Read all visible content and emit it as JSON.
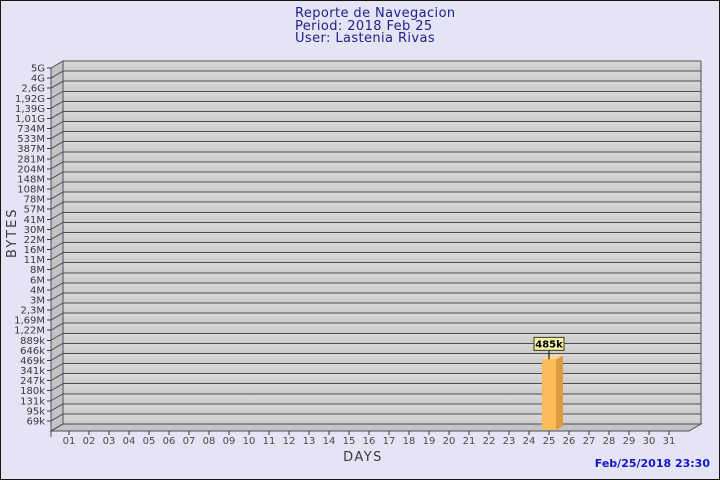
{
  "page": {
    "background_color": "#E4E4F5",
    "footer_timestamp": "Feb/25/2018 23:30"
  },
  "chart_data": {
    "type": "bar",
    "title": "Reporte de Navegacion",
    "period_line": "Period: 2018 Feb 25",
    "user_line": "User: Lastenia Rivas",
    "xlabel": "DAYS",
    "ylabel": "BYTES",
    "y_scale": "log",
    "y_tick_labels": [
      "5G",
      "4G",
      "2,6G",
      "1,92G",
      "1,39G",
      "1,01G",
      "734M",
      "533M",
      "387M",
      "281M",
      "204M",
      "148M",
      "108M",
      "78M",
      "57M",
      "41M",
      "30M",
      "22M",
      "16M",
      "11M",
      "8M",
      "6M",
      "4M",
      "3M",
      "2,3M",
      "1,69M",
      "1,22M",
      "889k",
      "646k",
      "469k",
      "341k",
      "247k",
      "180k",
      "131k",
      "95k",
      "69k"
    ],
    "y_tick_values": [
      5000000000,
      4000000000,
      2600000000,
      1920000000,
      1390000000,
      1010000000,
      734000000,
      533000000,
      387000000,
      281000000,
      204000000,
      148000000,
      108000000,
      78000000,
      57000000,
      41000000,
      30000000,
      22000000,
      16000000,
      11000000,
      8000000,
      6000000,
      4000000,
      3000000,
      2300000,
      1690000,
      1220000,
      889000,
      646000,
      469000,
      341000,
      247000,
      180000,
      131000,
      95000,
      69000
    ],
    "x_categories": [
      "01",
      "02",
      "03",
      "04",
      "05",
      "06",
      "07",
      "08",
      "09",
      "10",
      "11",
      "12",
      "13",
      "14",
      "15",
      "16",
      "17",
      "18",
      "19",
      "20",
      "21",
      "22",
      "23",
      "24",
      "25",
      "26",
      "27",
      "28",
      "29",
      "30",
      "31"
    ],
    "bars": [
      {
        "category": "25",
        "value": 485000,
        "value_label": "485k"
      }
    ],
    "colors": {
      "title_text": "#21218C",
      "timestamp_text": "#1515CE",
      "axis_text": "#3A3A3A",
      "day_text": "#4A4A4A",
      "grid_line": "#4F4F4F",
      "plot_band_light": "#D9D9D9",
      "plot_band_dark": "#CBCBCB",
      "wall_fill": "#C3C3C7",
      "bar_front": "#FBBB58",
      "bar_side": "#DA9C3E",
      "bar_top": "#FFD894",
      "value_box_fill": "#F2F0A8",
      "value_box_border": "#3C3C10",
      "value_text": "#000000"
    }
  }
}
